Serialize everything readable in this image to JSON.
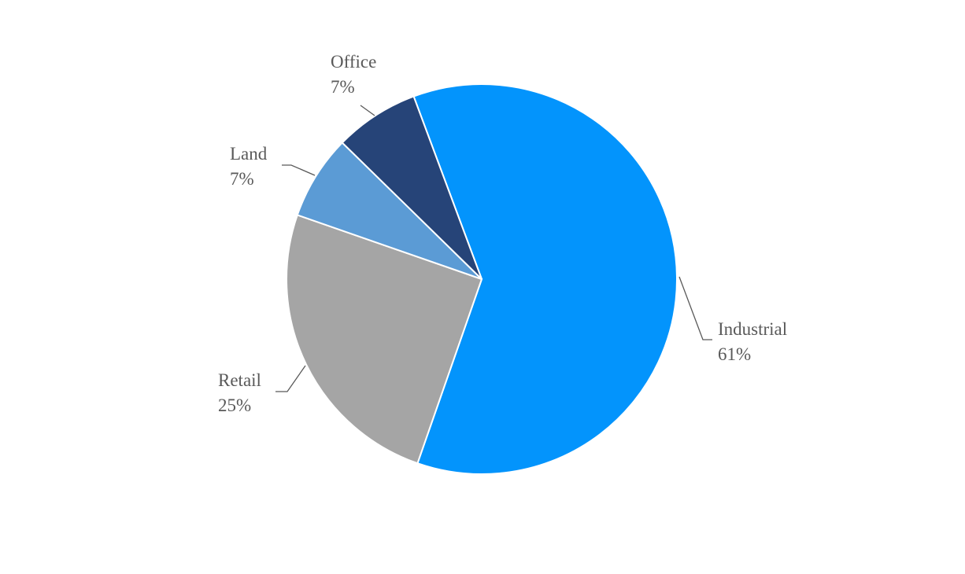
{
  "chart_data": {
    "type": "pie",
    "categories": [
      "Industrial",
      "Retail",
      "Land",
      "Office"
    ],
    "values": [
      61,
      25,
      7,
      7
    ],
    "value_labels": [
      "61%",
      "25%",
      "7%",
      "7%"
    ],
    "colors": [
      "#0394fc",
      "#a5a5a5",
      "#5b9bd5",
      "#264478"
    ]
  }
}
